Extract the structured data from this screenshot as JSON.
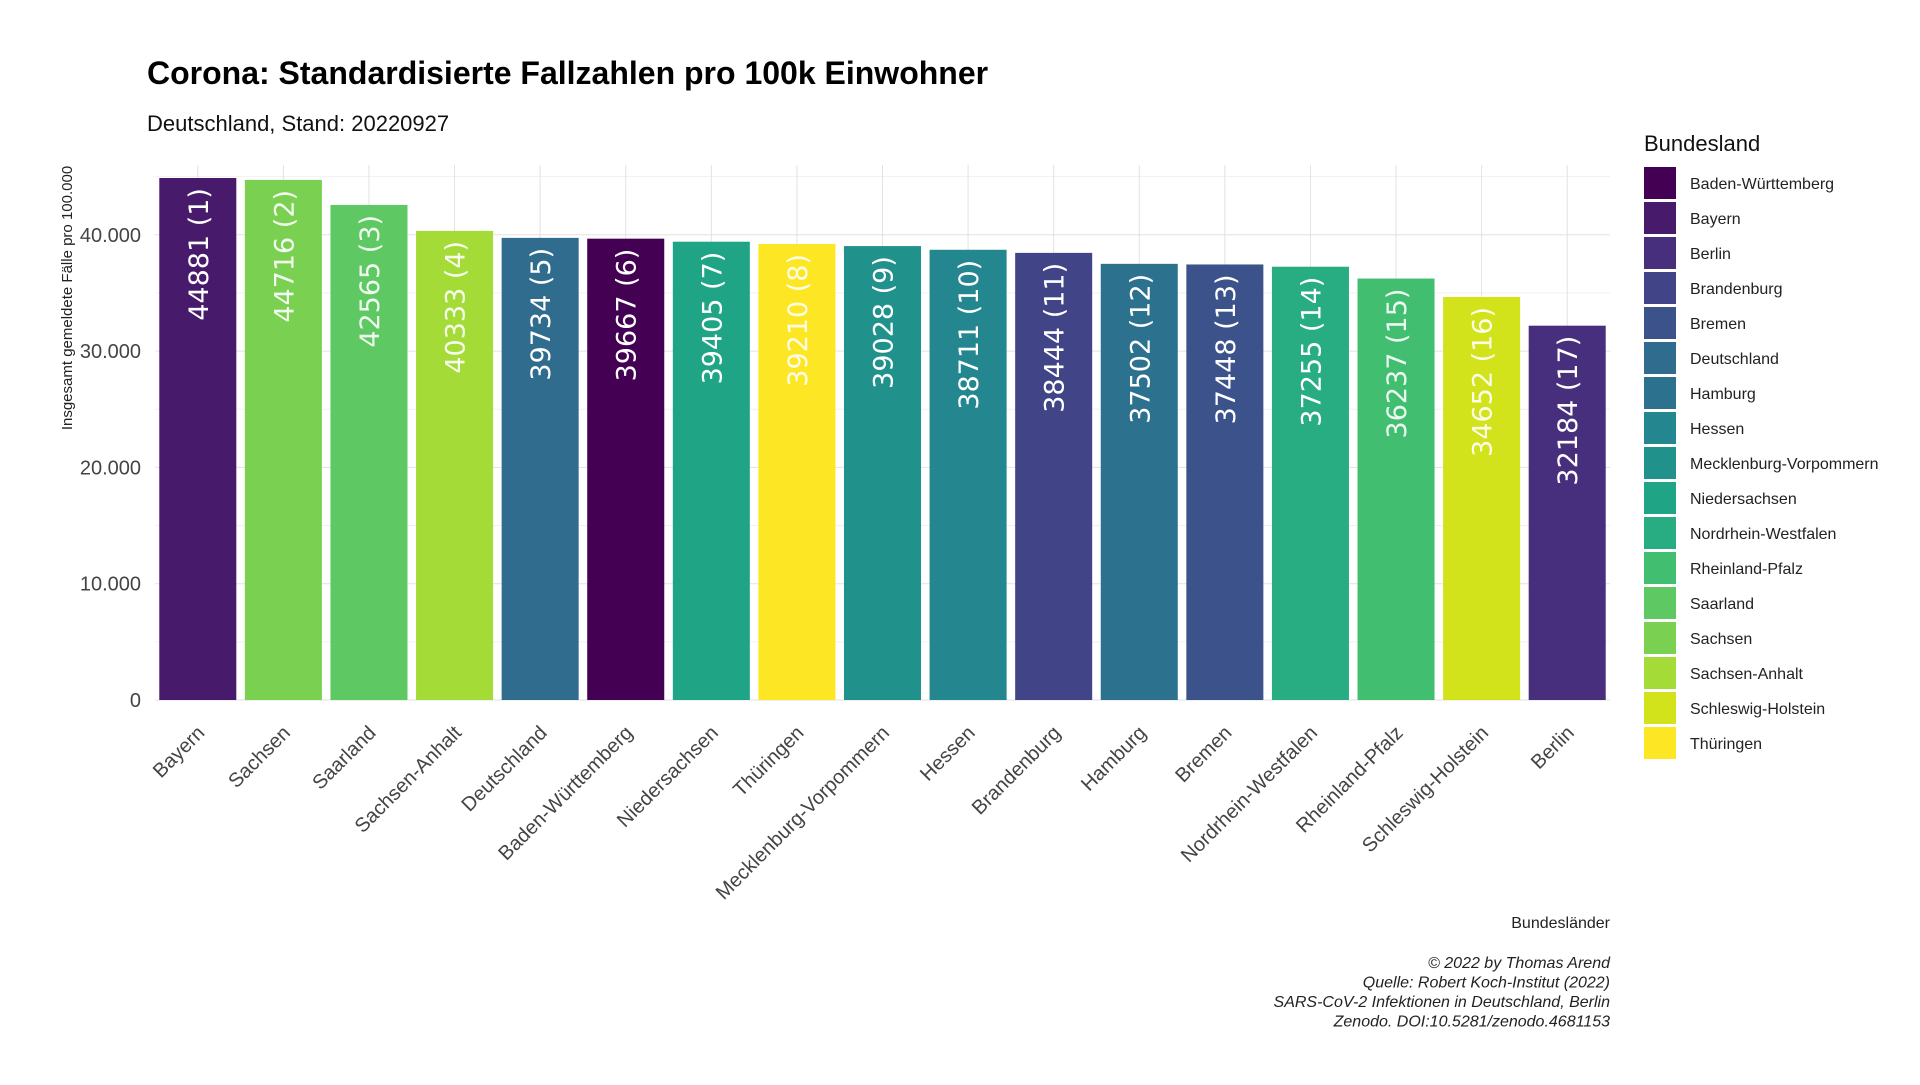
{
  "chart_data": {
    "type": "bar",
    "title": "Corona: Standardisierte Fallzahlen pro 100k Einwohner",
    "subtitle": "Deutschland, Stand: 20220927",
    "xlabel": "Bundesländer",
    "ylabel": "Insgesamt gemeldete Fälle pro 100.000",
    "ylim": [
      0,
      46000
    ],
    "yticks": [
      {
        "value": 0,
        "label": "0"
      },
      {
        "value": 10000,
        "label": "10.000"
      },
      {
        "value": 20000,
        "label": "20.000"
      },
      {
        "value": 30000,
        "label": "30.000"
      },
      {
        "value": 40000,
        "label": "40.000"
      }
    ],
    "grid": true,
    "legend_position": "right",
    "legend_title": "Bundesland",
    "categories": [
      "Bayern",
      "Sachsen",
      "Saarland",
      "Sachsen-Anhalt",
      "Deutschland",
      "Baden-Württemberg",
      "Niedersachsen",
      "Thüringen",
      "Mecklenburg-Vorpommern",
      "Hessen",
      "Brandenburg",
      "Hamburg",
      "Bremen",
      "Nordrhein-Westfalen",
      "Rheinland-Pfalz",
      "Schleswig-Holstein",
      "Berlin"
    ],
    "values": [
      44881,
      44716,
      42565,
      40333,
      39734,
      39667,
      39405,
      39210,
      39028,
      38711,
      38444,
      37502,
      37448,
      37255,
      36237,
      34652,
      32184
    ],
    "bar_labels": [
      "44881 (1)",
      "44716 (2)",
      "42565 (3)",
      "40333 (4)",
      "39734 (5)",
      "39667 (6)",
      "39405 (7)",
      "39210 (8)",
      "39028 (9)",
      "38711 (10)",
      "38444 (11)",
      "37502 (12)",
      "37448 (13)",
      "37255 (14)",
      "36237 (15)",
      "34652 (16)",
      "32184 (17)"
    ],
    "bar_colors": [
      "#481a6c",
      "#7ad151",
      "#5ec962",
      "#a5db36",
      "#2f6c8e",
      "#440154",
      "#20a486",
      "#fde725",
      "#21918c",
      "#24868e",
      "#414487",
      "#2c728e",
      "#3b528b",
      "#27ad81",
      "#42be71",
      "#d2e21b",
      "#472f7d"
    ],
    "legend": [
      {
        "name": "Baden-Württemberg",
        "color": "#440154"
      },
      {
        "name": "Bayern",
        "color": "#481a6c"
      },
      {
        "name": "Berlin",
        "color": "#472f7d"
      },
      {
        "name": "Brandenburg",
        "color": "#414487"
      },
      {
        "name": "Bremen",
        "color": "#3b528b"
      },
      {
        "name": "Deutschland",
        "color": "#2f6c8e"
      },
      {
        "name": "Hamburg",
        "color": "#2c728e"
      },
      {
        "name": "Hessen",
        "color": "#24868e"
      },
      {
        "name": "Mecklenburg-Vorpommern",
        "color": "#21918c"
      },
      {
        "name": "Niedersachsen",
        "color": "#20a486"
      },
      {
        "name": "Nordrhein-Westfalen",
        "color": "#27ad81"
      },
      {
        "name": "Rheinland-Pfalz",
        "color": "#42be71"
      },
      {
        "name": "Saarland",
        "color": "#5ec962"
      },
      {
        "name": "Sachsen",
        "color": "#7ad151"
      },
      {
        "name": "Sachsen-Anhalt",
        "color": "#a5db36"
      },
      {
        "name": "Schleswig-Holstein",
        "color": "#d2e21b"
      },
      {
        "name": "Thüringen",
        "color": "#fde725"
      }
    ],
    "caption": [
      "© 2022 by Thomas Arend",
      "Quelle: Robert Koch-Institut (2022)",
      "SARS-CoV-2 Infektionen in Deutschland, Berlin",
      "Zenodo. DOI:10.5281/zenodo.4681153"
    ]
  }
}
